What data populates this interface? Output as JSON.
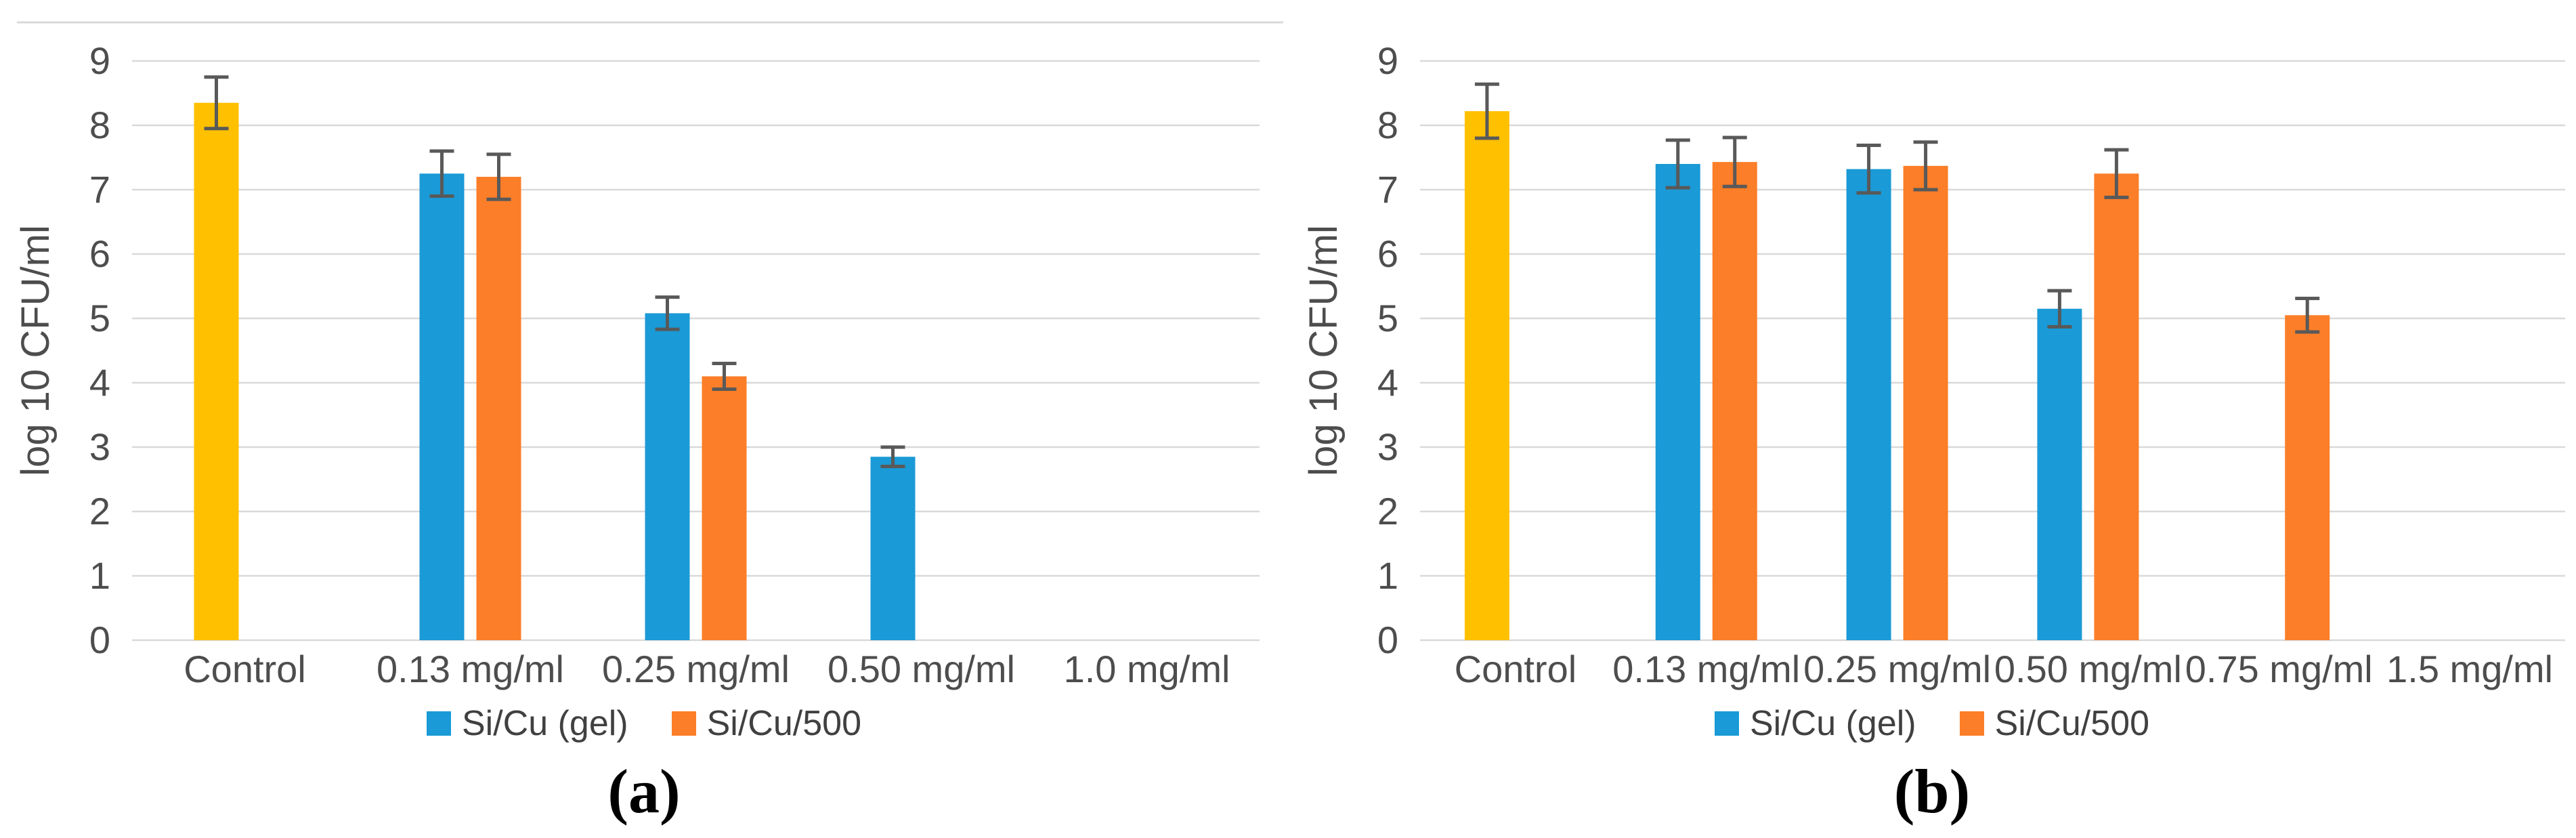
{
  "figure": {
    "background": "#ffffff",
    "panel_count": 2
  },
  "colors": {
    "control": "#FFC000",
    "si_cu_gel": "#1A9AD6",
    "si_cu_500": "#FC7E28",
    "error_bar": "#595959",
    "gridline": "#D9D9D9",
    "chart_border": "#D9D9D9",
    "axis_text": "#4D4D4D",
    "label_text": "#404040"
  },
  "legend": {
    "items": [
      {
        "label": "Si/Cu (gel)",
        "color_key": "si_cu_gel"
      },
      {
        "label": "Si/Cu/500",
        "color_key": "si_cu_500"
      }
    ]
  },
  "chart_data": [
    {
      "type": "bar",
      "caption": "(a)",
      "title": "",
      "xlabel": "",
      "ylabel": "log 10 CFU/ml",
      "ylim": [
        0,
        9
      ],
      "ytick_step": 1,
      "yticks": [
        0,
        1,
        2,
        3,
        4,
        5,
        6,
        7,
        8,
        9
      ],
      "grid": true,
      "top_border": true,
      "legend_position": "bottom",
      "categories": [
        "Control",
        "0.13 mg/ml",
        "0.25 mg/ml",
        "0.50 mg/ml",
        "1.0 mg/ml"
      ],
      "series": [
        {
          "name": "Control",
          "color": "#FFC000",
          "slot": "left",
          "values": [
            8.35,
            null,
            null,
            null,
            null
          ],
          "errors": [
            0.4,
            null,
            null,
            null,
            null
          ]
        },
        {
          "name": "Si/Cu (gel)",
          "color": "#1A9AD6",
          "slot": "left",
          "values": [
            null,
            7.25,
            5.08,
            2.85,
            null
          ],
          "errors": [
            null,
            0.35,
            0.25,
            0.15,
            null
          ]
        },
        {
          "name": "Si/Cu/500",
          "color": "#FC7E28",
          "slot": "right",
          "values": [
            null,
            7.2,
            4.1,
            null,
            null
          ],
          "errors": [
            null,
            0.35,
            0.2,
            null,
            null
          ]
        }
      ]
    },
    {
      "type": "bar",
      "caption": "(b)",
      "title": "",
      "xlabel": "",
      "ylabel": "log 10 CFU/ml",
      "ylim": [
        0,
        9
      ],
      "ytick_step": 1,
      "yticks": [
        0,
        1,
        2,
        3,
        4,
        5,
        6,
        7,
        8,
        9
      ],
      "grid": true,
      "top_border": false,
      "legend_position": "bottom",
      "categories": [
        "Control",
        "0.13 mg/ml",
        "0.25 mg/ml",
        "0.50 mg/ml",
        "0.75 mg/ml",
        "1.5 mg/ml"
      ],
      "series": [
        {
          "name": "Control",
          "color": "#FFC000",
          "slot": "left",
          "values": [
            8.22,
            null,
            null,
            null,
            null,
            null
          ],
          "errors": [
            0.42,
            null,
            null,
            null,
            null,
            null
          ]
        },
        {
          "name": "Si/Cu (gel)",
          "color": "#1A9AD6",
          "slot": "left",
          "values": [
            null,
            7.4,
            7.32,
            5.15,
            null,
            null
          ],
          "errors": [
            null,
            0.37,
            0.37,
            0.28,
            null,
            null
          ]
        },
        {
          "name": "Si/Cu/500",
          "color": "#FC7E28",
          "slot": "right",
          "values": [
            null,
            7.43,
            7.37,
            7.25,
            5.05,
            null
          ],
          "errors": [
            null,
            0.38,
            0.37,
            0.37,
            0.26,
            null
          ]
        }
      ]
    }
  ]
}
